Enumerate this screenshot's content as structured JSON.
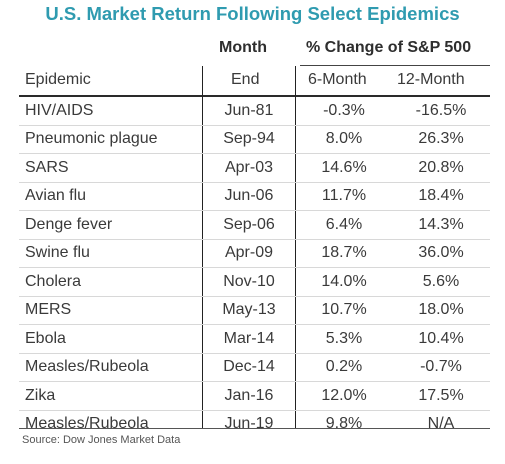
{
  "title": "U.S. Market Return Following Select Epidemics",
  "header": {
    "month_top": "Month",
    "month_bottom": "End",
    "change_group": "% Change of S&P 500",
    "epidemic": "Epidemic",
    "six_month": "6-Month",
    "twelve_month": "12-Month"
  },
  "chart_data": {
    "type": "table",
    "title": "U.S. Market Return Following Select Epidemics",
    "columns": [
      "Epidemic",
      "Month End",
      "6-Month",
      "12-Month"
    ],
    "rows": [
      {
        "epidemic": "HIV/AIDS",
        "month_end": "Jun-81",
        "six_month": "-0.3%",
        "twelve_month": "-16.5%"
      },
      {
        "epidemic": "Pneumonic plague",
        "month_end": "Sep-94",
        "six_month": "8.0%",
        "twelve_month": "26.3%"
      },
      {
        "epidemic": "SARS",
        "month_end": "Apr-03",
        "six_month": "14.6%",
        "twelve_month": "20.8%"
      },
      {
        "epidemic": "Avian flu",
        "month_end": "Jun-06",
        "six_month": "11.7%",
        "twelve_month": "18.4%"
      },
      {
        "epidemic": "Denge fever",
        "month_end": "Sep-06",
        "six_month": "6.4%",
        "twelve_month": "14.3%"
      },
      {
        "epidemic": "Swine flu",
        "month_end": "Apr-09",
        "six_month": "18.7%",
        "twelve_month": "36.0%"
      },
      {
        "epidemic": "Cholera",
        "month_end": "Nov-10",
        "six_month": "14.0%",
        "twelve_month": "5.6%"
      },
      {
        "epidemic": "MERS",
        "month_end": "May-13",
        "six_month": "10.7%",
        "twelve_month": "18.0%"
      },
      {
        "epidemic": "Ebola",
        "month_end": "Mar-14",
        "six_month": "5.3%",
        "twelve_month": "10.4%"
      },
      {
        "epidemic": "Measles/Rubeola",
        "month_end": "Dec-14",
        "six_month": "0.2%",
        "twelve_month": "-0.7%"
      },
      {
        "epidemic": "Zika",
        "month_end": "Jan-16",
        "six_month": "12.0%",
        "twelve_month": "17.5%"
      },
      {
        "epidemic": "Measles/Rubeola",
        "month_end": "Jun-19",
        "six_month": "9.8%",
        "twelve_month": "N/A"
      }
    ]
  },
  "source": "Source: Dow Jones Market Data",
  "colors": {
    "title": "#2f9bb0",
    "text": "#3a3a3a",
    "row_divider": "#d8d8d8"
  }
}
